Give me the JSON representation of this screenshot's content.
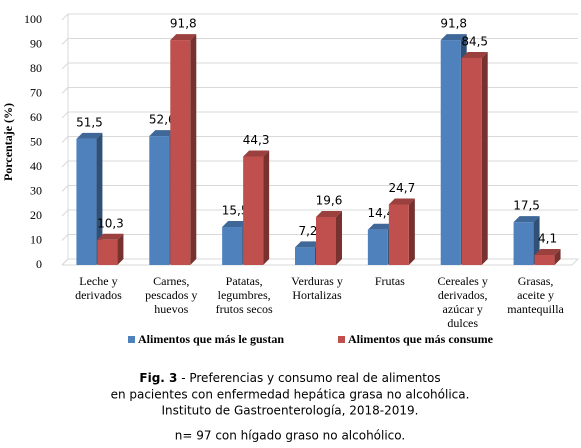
{
  "chart_data": {
    "type": "bar3d",
    "y_label": "Porcentaje (%)",
    "categories": [
      [
        "Leche y",
        "derivados"
      ],
      [
        "Carnes,",
        "pescados y",
        "huevos"
      ],
      [
        "Patatas,",
        "legumbres,",
        "frutos secos"
      ],
      [
        "Verduras y",
        "Hortalizas"
      ],
      [
        "Frutas"
      ],
      [
        "Cereales y",
        "derivados,",
        "azúcar y",
        "dulces"
      ],
      [
        "Grasas,",
        "aceite y",
        "mantequilla"
      ]
    ],
    "series": [
      {
        "name": "Alimentos que más le gustan",
        "color": "#4f81bd",
        "values": [
          51.5,
          52.6,
          15.5,
          7.2,
          14.4,
          91.8,
          17.5
        ],
        "value_labels": [
          "51,5",
          "52,6",
          "15,5",
          "7,2",
          "14,4",
          "91,8",
          "17,5"
        ]
      },
      {
        "name": "Alimentos que más consume",
        "color": "#c0504d",
        "values": [
          10.3,
          91.8,
          44.3,
          19.6,
          24.7,
          84.5,
          4.1
        ],
        "value_labels": [
          "10,3",
          "91,8",
          "44,3",
          "19,6",
          "24,7",
          "84,5",
          "4,1"
        ]
      }
    ],
    "ylim": [
      0,
      100
    ],
    "yticks": [
      0,
      10,
      20,
      30,
      40,
      50,
      60,
      70,
      80,
      90,
      100
    ],
    "grid": true,
    "legend": "bottom"
  },
  "caption": {
    "label": "Fig. 3",
    "lines": [
      " - Preferencias y consumo real de alimentos",
      "en pacientes con enfermedad hepática grasa no alcohólica.",
      "Instituto de Gastroenterología, 2018-2019."
    ],
    "note": "n= 97 con hígado graso no alcohólico."
  }
}
